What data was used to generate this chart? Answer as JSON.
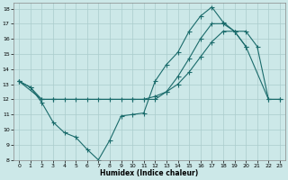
{
  "xlabel": "Humidex (Indice chaleur)",
  "background_color": "#cce8e8",
  "grid_color": "#aacccc",
  "line_color": "#1a6b6b",
  "xlim": [
    -0.5,
    23.5
  ],
  "ylim": [
    8,
    18.4
  ],
  "yticks": [
    8,
    9,
    10,
    11,
    12,
    13,
    14,
    15,
    16,
    17,
    18
  ],
  "xticks": [
    0,
    1,
    2,
    3,
    4,
    5,
    6,
    7,
    8,
    9,
    10,
    11,
    12,
    13,
    14,
    15,
    16,
    17,
    18,
    19,
    20,
    21,
    22,
    23
  ],
  "line1_x": [
    0,
    1,
    2,
    3,
    4,
    5,
    6,
    7,
    8,
    9,
    10,
    11,
    12,
    13,
    14,
    15,
    16,
    17,
    18,
    19,
    20
  ],
  "line1_y": [
    13.2,
    12.8,
    11.8,
    10.5,
    9.8,
    9.5,
    8.7,
    8.0,
    9.3,
    10.9,
    11.0,
    11.1,
    13.2,
    14.3,
    15.1,
    16.5,
    17.5,
    18.1,
    17.1,
    16.5,
    15.5
  ],
  "line2_x": [
    0,
    1,
    2,
    3,
    10,
    11,
    12,
    13,
    14,
    15,
    16,
    17,
    18,
    19,
    20,
    22,
    23
  ],
  "line2_y": [
    13.2,
    12.8,
    12.0,
    12.0,
    12.0,
    12.0,
    12.0,
    12.5,
    13.5,
    14.7,
    16.0,
    17.0,
    17.0,
    16.5,
    15.5,
    12.0,
    12.0
  ],
  "line3_x": [
    0,
    2,
    3,
    4,
    5,
    6,
    7,
    8,
    9,
    10,
    11,
    12,
    13,
    14,
    15,
    16,
    17,
    18,
    19,
    20,
    21,
    22,
    23
  ],
  "line3_y": [
    13.2,
    12.0,
    12.0,
    12.0,
    12.0,
    12.0,
    12.0,
    12.0,
    12.0,
    12.0,
    12.0,
    12.2,
    12.5,
    13.0,
    13.8,
    14.8,
    15.8,
    16.5,
    16.5,
    16.5,
    15.5,
    12.0,
    12.0
  ]
}
